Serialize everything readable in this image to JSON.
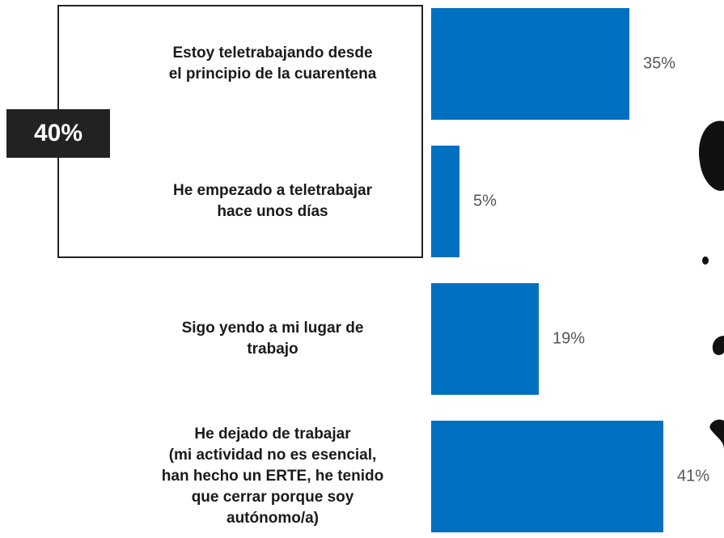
{
  "chart_data": {
    "type": "bar",
    "orientation": "horizontal",
    "categories": [
      "Estoy teletrabajando desde\nel principio de la cuarentena",
      "He empezado a teletrabajar\nhace unos días",
      "Sigo yendo a mi lugar de\ntrabajo",
      "He dejado de trabajar\n(mi actividad no es esencial,\nhan hecho un ERTE, he tenido\nque cerrar porque soy\nautónomo/a)"
    ],
    "values": [
      35,
      5,
      19,
      41
    ],
    "value_labels": [
      "35%",
      "5%",
      "19%",
      "41%"
    ],
    "color": "#0070c0",
    "annotation": "40%"
  }
}
